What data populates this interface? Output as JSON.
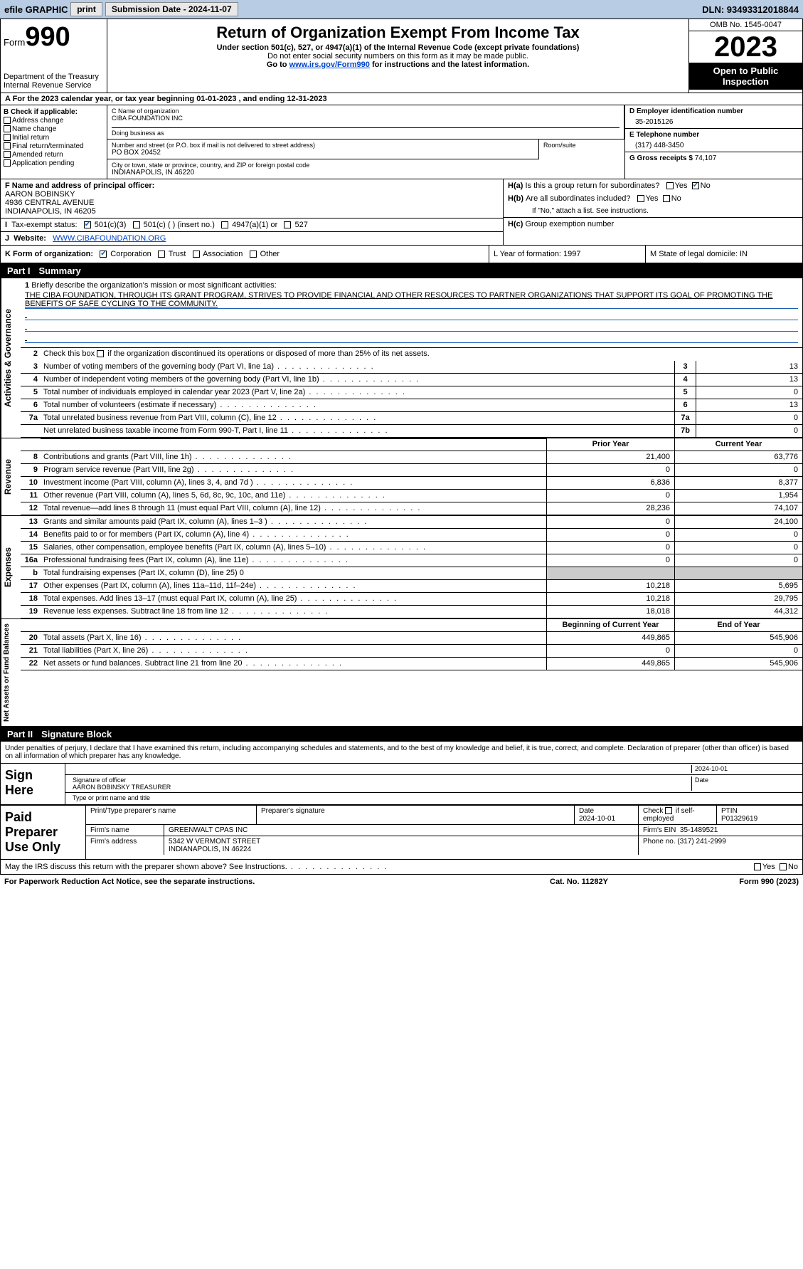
{
  "topbar": {
    "efile": "efile GRAPHIC",
    "print": "print",
    "submission": "Submission Date - 2024-11-07",
    "dln": "DLN: 93493312018844"
  },
  "header": {
    "form_label": "Form",
    "form_num": "990",
    "dept": "Department of the Treasury",
    "irs": "Internal Revenue Service",
    "title": "Return of Organization Exempt From Income Tax",
    "sub1": "Under section 501(c), 527, or 4947(a)(1) of the Internal Revenue Code (except private foundations)",
    "sub2": "Do not enter social security numbers on this form as it may be made public.",
    "sub3_pre": "Go to ",
    "sub3_link": "www.irs.gov/Form990",
    "sub3_post": " for instructions and the latest information.",
    "omb": "OMB No. 1545-0047",
    "year": "2023",
    "open": "Open to Public Inspection"
  },
  "row_a": "A For the 2023 calendar year, or tax year beginning 01-01-2023   , and ending 12-31-2023",
  "col_b": {
    "hdr": "B Check if applicable:",
    "opts": [
      "Address change",
      "Name change",
      "Initial return",
      "Final return/terminated",
      "Amended return",
      "Application pending"
    ]
  },
  "col_c": {
    "name_lbl": "C Name of organization",
    "name": "CIBA FOUNDATION INC",
    "dba_lbl": "Doing business as",
    "dba": "",
    "addr_lbl": "Number and street (or P.O. box if mail is not delivered to street address)",
    "addr": "PO BOX 20452",
    "room_lbl": "Room/suite",
    "room": "",
    "city_lbl": "City or town, state or province, country, and ZIP or foreign postal code",
    "city": "INDIANAPOLIS, IN  46220"
  },
  "col_d": {
    "ein_lbl": "D Employer identification number",
    "ein": "35-2015126",
    "tel_lbl": "E Telephone number",
    "tel": "(317) 448-3450",
    "gross_lbl": "G Gross receipts $",
    "gross": "74,107"
  },
  "f_block": {
    "lbl": "F Name and address of principal officer:",
    "name": "AARON BOBINSKY",
    "addr1": "4936 CENTRAL AVENUE",
    "addr2": "INDIANAPOLIS, IN  46205"
  },
  "h_block": {
    "ha": "Is this a group return for subordinates?",
    "hb": "Are all subordinates included?",
    "hb_note": "If \"No,\" attach a list. See instructions.",
    "hc": "Group exemption number"
  },
  "row_i": {
    "lbl": "Tax-exempt status:",
    "o1": "501(c)(3)",
    "o2": "501(c) (  ) (insert no.)",
    "o3": "4947(a)(1) or",
    "o4": "527"
  },
  "row_j": {
    "lbl": "Website:",
    "val": "WWW.CIBAFOUNDATION.ORG"
  },
  "row_k": {
    "k_lbl": "K Form of organization:",
    "k_opts": [
      "Corporation",
      "Trust",
      "Association",
      "Other"
    ],
    "l": "L Year of formation: 1997",
    "m": "M State of legal domicile: IN"
  },
  "part1": {
    "num": "Part I",
    "title": "Summary",
    "tab1": "Activities & Governance",
    "tab2": "Revenue",
    "tab3": "Expenses",
    "tab4": "Net Assets or Fund Balances",
    "q1": "Briefly describe the organization's mission or most significant activities:",
    "mission": "THE CIBA FOUNDATION, THROUGH ITS GRANT PROGRAM, STRIVES TO PROVIDE FINANCIAL AND OTHER RESOURCES TO PARTNER ORGANIZATIONS THAT SUPPORT ITS GOAL OF PROMOTING THE BENEFITS OF SAFE CYCLING TO THE COMMUNITY.",
    "q2": "Check this box      if the organization discontinued its operations or disposed of more than 25% of its net assets.",
    "rows_gov": [
      {
        "n": "3",
        "d": "Number of voting members of the governing body (Part VI, line 1a)",
        "c": "3",
        "v": "13"
      },
      {
        "n": "4",
        "d": "Number of independent voting members of the governing body (Part VI, line 1b)",
        "c": "4",
        "v": "13"
      },
      {
        "n": "5",
        "d": "Total number of individuals employed in calendar year 2023 (Part V, line 2a)",
        "c": "5",
        "v": "0"
      },
      {
        "n": "6",
        "d": "Total number of volunteers (estimate if necessary)",
        "c": "6",
        "v": "13"
      },
      {
        "n": "7a",
        "d": "Total unrelated business revenue from Part VIII, column (C), line 12",
        "c": "7a",
        "v": "0"
      },
      {
        "n": "",
        "d": "Net unrelated business taxable income from Form 990-T, Part I, line 11",
        "c": "7b",
        "v": "0"
      }
    ],
    "col_prior": "Prior Year",
    "col_curr": "Current Year",
    "rows_rev": [
      {
        "n": "8",
        "d": "Contributions and grants (Part VIII, line 1h)",
        "p": "21,400",
        "c": "63,776"
      },
      {
        "n": "9",
        "d": "Program service revenue (Part VIII, line 2g)",
        "p": "0",
        "c": "0"
      },
      {
        "n": "10",
        "d": "Investment income (Part VIII, column (A), lines 3, 4, and 7d )",
        "p": "6,836",
        "c": "8,377"
      },
      {
        "n": "11",
        "d": "Other revenue (Part VIII, column (A), lines 5, 6d, 8c, 9c, 10c, and 11e)",
        "p": "0",
        "c": "1,954"
      },
      {
        "n": "12",
        "d": "Total revenue—add lines 8 through 11 (must equal Part VIII, column (A), line 12)",
        "p": "28,236",
        "c": "74,107"
      }
    ],
    "rows_exp": [
      {
        "n": "13",
        "d": "Grants and similar amounts paid (Part IX, column (A), lines 1–3 )",
        "p": "0",
        "c": "24,100"
      },
      {
        "n": "14",
        "d": "Benefits paid to or for members (Part IX, column (A), line 4)",
        "p": "0",
        "c": "0"
      },
      {
        "n": "15",
        "d": "Salaries, other compensation, employee benefits (Part IX, column (A), lines 5–10)",
        "p": "0",
        "c": "0"
      },
      {
        "n": "16a",
        "d": "Professional fundraising fees (Part IX, column (A), line 11e)",
        "p": "0",
        "c": "0"
      },
      {
        "n": "b",
        "d": "Total fundraising expenses (Part IX, column (D), line 25) 0",
        "p": "",
        "c": "",
        "gray": true
      },
      {
        "n": "17",
        "d": "Other expenses (Part IX, column (A), lines 11a–11d, 11f–24e)",
        "p": "10,218",
        "c": "5,695"
      },
      {
        "n": "18",
        "d": "Total expenses. Add lines 13–17 (must equal Part IX, column (A), line 25)",
        "p": "10,218",
        "c": "29,795"
      },
      {
        "n": "19",
        "d": "Revenue less expenses. Subtract line 18 from line 12",
        "p": "18,018",
        "c": "44,312"
      }
    ],
    "col_beg": "Beginning of Current Year",
    "col_end": "End of Year",
    "rows_net": [
      {
        "n": "20",
        "d": "Total assets (Part X, line 16)",
        "p": "449,865",
        "c": "545,906"
      },
      {
        "n": "21",
        "d": "Total liabilities (Part X, line 26)",
        "p": "0",
        "c": "0"
      },
      {
        "n": "22",
        "d": "Net assets or fund balances. Subtract line 21 from line 20",
        "p": "449,865",
        "c": "545,906"
      }
    ]
  },
  "part2": {
    "num": "Part II",
    "title": "Signature Block",
    "decl": "Under penalties of perjury, I declare that I have examined this return, including accompanying schedules and statements, and to the best of my knowledge and belief, it is true, correct, and complete. Declaration of preparer (other than officer) is based on all information of which preparer has any knowledge.",
    "sign_here": "Sign Here",
    "sig_lbl": "Signature of officer",
    "sig_name": "AARON BOBINSKY TREASURER",
    "sig_type": "Type or print name and title",
    "sig_date_lbl": "Date",
    "sig_date": "2024-10-01",
    "paid": "Paid Preparer Use Only",
    "pp_name_lbl": "Print/Type preparer's name",
    "pp_sig_lbl": "Preparer's signature",
    "pp_date_lbl": "Date",
    "pp_date": "2024-10-01",
    "pp_self": "Check      if self-employed",
    "pp_ptin_lbl": "PTIN",
    "pp_ptin": "P01329619",
    "firm_name_lbl": "Firm's name",
    "firm_name": "GREENWALT CPAS INC",
    "firm_ein_lbl": "Firm's EIN",
    "firm_ein": "35-1489521",
    "firm_addr_lbl": "Firm's address",
    "firm_addr1": "5342 W VERMONT STREET",
    "firm_addr2": "INDIANAPOLIS, IN  46224",
    "firm_phone_lbl": "Phone no.",
    "firm_phone": "(317) 241-2999",
    "discuss": "May the IRS discuss this return with the preparer shown above? See Instructions."
  },
  "footer": {
    "f1": "For Paperwork Reduction Act Notice, see the separate instructions.",
    "f2": "Cat. No. 11282Y",
    "f3": "Form 990 (2023)"
  },
  "labels": {
    "yes": "Yes",
    "no": "No"
  }
}
